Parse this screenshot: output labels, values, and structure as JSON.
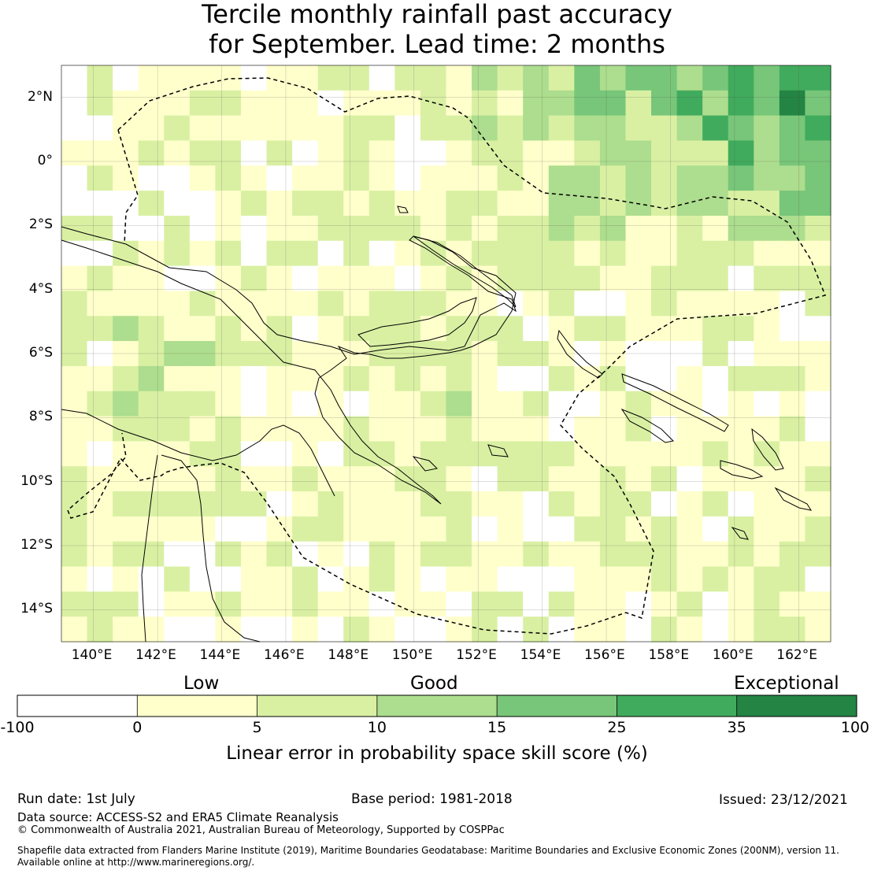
{
  "title": {
    "line1": "Tercile monthly rainfall past accuracy",
    "line2": "for September. Lead time: 2 months"
  },
  "map": {
    "lon_range": [
      139,
      163
    ],
    "lat_range": [
      -15,
      3
    ],
    "lon_ticks": [
      "140°E",
      "142°E",
      "144°E",
      "146°E",
      "148°E",
      "150°E",
      "152°E",
      "154°E",
      "156°E",
      "158°E",
      "160°E",
      "162°E"
    ],
    "lat_ticks": [
      "2°N",
      "0°",
      "2°S",
      "4°S",
      "6°S",
      "8°S",
      "10°S",
      "12°S",
      "14°S"
    ],
    "grid": true,
    "cell_size_deg": 0.8,
    "layers": [
      "skill-score-raster",
      "coastlines",
      "eez-boundary-dashed"
    ]
  },
  "colorbar": {
    "qualitative": {
      "low": "Low",
      "good": "Good",
      "exceptional": "Exceptional"
    },
    "boundaries": [
      "-100",
      "0",
      "5",
      "10",
      "15",
      "25",
      "35",
      "100"
    ],
    "colors": [
      "#ffffff",
      "#ffffcc",
      "#d9f0a3",
      "#addd8e",
      "#78c679",
      "#41ab5d",
      "#238443"
    ],
    "label": "Linear error in probability space skill score (%)"
  },
  "footer": {
    "run_date": "Run date: 1st July",
    "base_period": "Base period: 1981-2018",
    "issued": "Issued: 23/12/2021",
    "data_source": "Data source: ACCESS-S2 and ERA5 Climate Reanalysis",
    "copyright": "© Commonwealth of Australia 2021, Australian Bureau of Meteorology, Supported by COSPPac",
    "shapefile_1": "Shapefile data extracted from Flanders Marine Institute (2019), Maritime Boundaries Geodatabase: Maritime Boundaries and Exclusive Economic Zones (200NM), version 11.",
    "shapefile_2": "Available online at http://www.marineregions.org/."
  }
}
